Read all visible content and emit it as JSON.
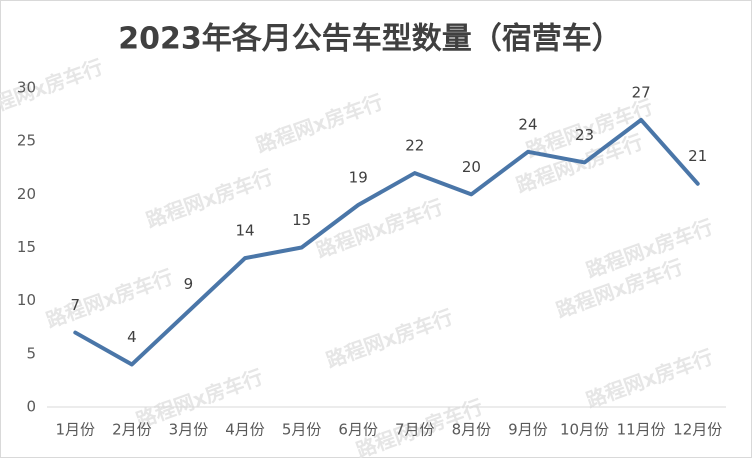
{
  "chart_data": {
    "type": "line",
    "title": "2023年各月公告车型数量（宿营车）",
    "watermark": "路程网x房车行",
    "categories": [
      "1月份",
      "2月份",
      "3月份",
      "4月份",
      "5月份",
      "6月份",
      "7月份",
      "8月份",
      "9月份",
      "10月份",
      "11月份",
      "12月份"
    ],
    "values": [
      7,
      4,
      9,
      14,
      15,
      19,
      22,
      20,
      24,
      23,
      27,
      21
    ],
    "color": "#4a76a8",
    "ylim": [
      0,
      30
    ],
    "yticks": [
      0,
      5,
      10,
      15,
      20,
      25,
      30
    ],
    "grid": false,
    "data_labels": true
  }
}
